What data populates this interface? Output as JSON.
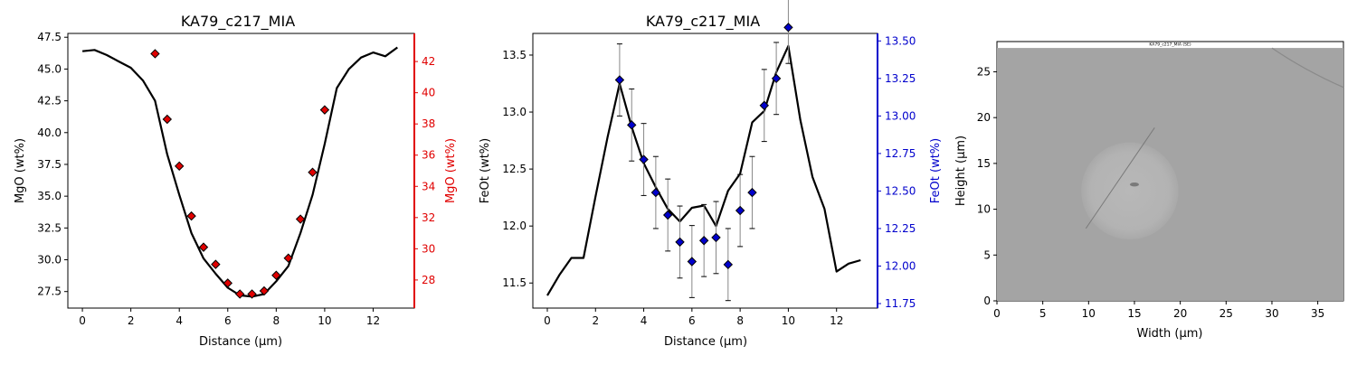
{
  "chart_data": [
    {
      "type": "line",
      "title": "KA79_c217_MIA",
      "xlabel": "Distance (µm)",
      "ylabel": "MgO (wt%)",
      "ylabel_right": "MgO (wt%)",
      "xlim": [
        -0.6,
        13.7
      ],
      "ylim": [
        26.2,
        47.8
      ],
      "ylim_right": [
        26.2,
        43.8
      ],
      "xticks": [
        0,
        2,
        4,
        6,
        8,
        10,
        12
      ],
      "yticks": [
        27.5,
        30.0,
        32.5,
        35.0,
        37.5,
        40.0,
        42.5,
        45.0,
        47.5
      ],
      "yticks_right": [
        28,
        30,
        32,
        34,
        36,
        38,
        40,
        42
      ],
      "right_axis_color": "#e00000",
      "series": [
        {
          "axis": "left",
          "style": "line",
          "color": "#000000",
          "x": [
            0,
            0.5,
            1,
            1.5,
            2,
            2.5,
            3,
            3.5,
            4,
            4.5,
            5,
            5.5,
            6,
            6.5,
            7,
            7.5,
            8,
            8.5,
            9,
            9.5,
            10,
            10.5,
            11,
            11.5,
            12,
            12.5,
            13
          ],
          "y": [
            46.4,
            46.5,
            46.1,
            45.6,
            45.1,
            44.1,
            42.5,
            38.3,
            35.1,
            32.1,
            30.1,
            28.9,
            27.8,
            27.2,
            27.1,
            27.3,
            28.3,
            29.5,
            32.1,
            35.1,
            39.1,
            43.5,
            45.0,
            45.9,
            46.3,
            46.0,
            46.7
          ]
        },
        {
          "axis": "right",
          "style": "markers",
          "marker": "diamond",
          "color": "#e00000",
          "x": [
            3,
            3.5,
            4,
            4.5,
            5,
            5.5,
            6,
            6.5,
            7,
            7.5,
            8,
            8.5,
            9,
            9.5,
            10
          ],
          "y": [
            42.5,
            38.3,
            35.3,
            32.1,
            30.1,
            29.0,
            27.8,
            27.1,
            27.1,
            27.3,
            28.3,
            29.4,
            31.9,
            34.9,
            38.9
          ]
        }
      ]
    },
    {
      "type": "line",
      "title": "KA79_c217_MIA",
      "xlabel": "Distance (µm)",
      "ylabel": "FeOt (wt%)",
      "ylabel_right": "FeOt (wt%)",
      "xlim": [
        -0.6,
        13.7
      ],
      "ylim": [
        11.28,
        13.69
      ],
      "ylim_right": [
        11.72,
        13.55
      ],
      "xticks": [
        0,
        2,
        4,
        6,
        8,
        10,
        12
      ],
      "yticks": [
        11.5,
        12.0,
        12.5,
        13.0,
        13.5
      ],
      "yticks_right": [
        11.75,
        12.0,
        12.25,
        12.5,
        12.75,
        13.0,
        13.25,
        13.5
      ],
      "yticks_label": [
        "11.5",
        "12.0",
        "12.5",
        "13.0",
        "13.5"
      ],
      "yticks_right_label": [
        "11.75",
        "12.00",
        "12.25",
        "12.50",
        "12.75",
        "13.00",
        "13.25",
        "13.50"
      ],
      "right_axis_color": "#0000cc",
      "series": [
        {
          "axis": "left",
          "style": "line",
          "color": "#000000",
          "x": [
            0,
            0.5,
            1,
            1.5,
            2,
            2.5,
            3,
            3.5,
            4,
            4.5,
            5,
            5.5,
            6,
            6.5,
            7,
            7.5,
            8,
            8.5,
            9,
            9.5,
            10,
            10.5,
            11,
            11.5,
            12,
            12.5,
            13
          ],
          "y": [
            11.39,
            11.57,
            11.72,
            11.72,
            12.26,
            12.78,
            13.25,
            12.87,
            12.55,
            12.34,
            12.15,
            12.04,
            12.16,
            12.18,
            12.0,
            12.31,
            12.46,
            12.91,
            13.01,
            13.35,
            13.58,
            12.93,
            12.43,
            12.15,
            11.6,
            11.67,
            11.7
          ]
        },
        {
          "axis": "right",
          "style": "markers",
          "marker": "diamond",
          "color": "#0000cc",
          "error_bar": 0.24,
          "x": [
            3,
            3.5,
            4,
            4.5,
            5,
            5.5,
            6,
            6.5,
            7,
            7.5,
            8,
            8.5,
            9,
            9.5,
            10
          ],
          "y": [
            13.24,
            12.94,
            12.71,
            12.49,
            12.34,
            12.16,
            12.03,
            12.17,
            12.19,
            12.01,
            12.37,
            12.49,
            13.07,
            13.25,
            13.59
          ]
        }
      ]
    },
    {
      "type": "image",
      "xlabel": "Width (µm)",
      "ylabel": "Height (µm)",
      "image_caption": "KA79_c217_MIA (SE)",
      "xlim": [
        0,
        37.8
      ],
      "ylim": [
        0,
        28.3
      ],
      "xticks": [
        0,
        5,
        10,
        15,
        20,
        25,
        30,
        35
      ],
      "yticks": [
        0,
        5,
        10,
        15,
        20,
        25
      ],
      "image_top": 27.6,
      "spot_center": [
        10.2,
        12.0
      ],
      "spot_radius": 5.3,
      "line_from": [
        9.7,
        7.9
      ],
      "line_to": [
        17.2,
        18.9
      ]
    }
  ]
}
